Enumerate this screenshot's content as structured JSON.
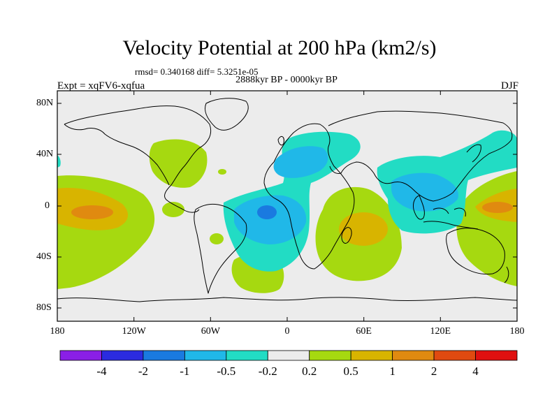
{
  "title": "Velocity Potential at 200 hPa (km2/s)",
  "stats": "rmsd= 0.340168 diff= 5.3251e-05",
  "period": "2888kyr BP - 0000kyr BP",
  "experiment": "Expt = xqFV6-xqfua",
  "season": "DJF",
  "map": {
    "projection": "cylindrical equidistant",
    "lat_range": [
      -90,
      90
    ],
    "lon_range": [
      -180,
      180
    ],
    "y_axis_labels": [
      "80N",
      "40N",
      "0",
      "40S",
      "80S"
    ],
    "x_axis_labels": [
      "180",
      "120W",
      "60W",
      "0",
      "60E",
      "120E",
      "180"
    ]
  },
  "colorbar": {
    "labels": [
      "-4",
      "-2",
      "-1",
      "-0.5",
      "-0.2",
      "0.2",
      "0.5",
      "1",
      "2",
      "4"
    ],
    "colors": [
      "#8a1fe6",
      "#2b2be0",
      "#1a7ae0",
      "#20b8e8",
      "#22dcc4",
      "#ececec",
      "#a6d910",
      "#d8b400",
      "#e08a10",
      "#e04a10",
      "#e01010"
    ]
  },
  "colors": {
    "background_field": "#ececec",
    "coastline": "#000000"
  }
}
